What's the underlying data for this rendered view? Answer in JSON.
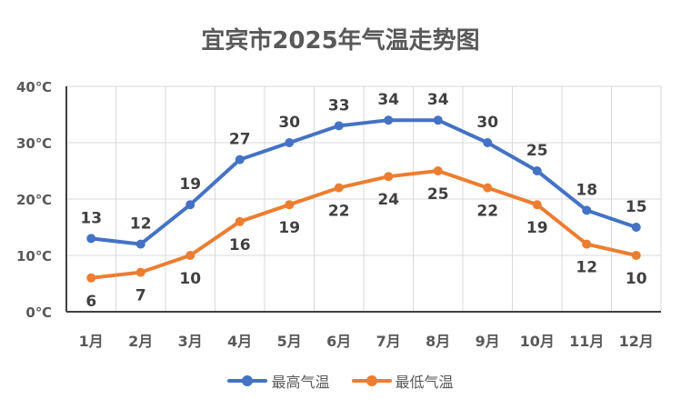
{
  "chart_data": {
    "type": "line",
    "title": "宜宾市2025年气温走势图",
    "categories": [
      "1月",
      "2月",
      "3月",
      "4月",
      "5月",
      "6月",
      "7月",
      "8月",
      "9月",
      "10月",
      "11月",
      "12月"
    ],
    "ylim": [
      0,
      40
    ],
    "yticks": [
      "0℃",
      "10℃",
      "20℃",
      "30℃",
      "40℃"
    ],
    "grid": true,
    "legend_position": "bottom",
    "series": [
      {
        "name": "最高气温",
        "color": "#4472C4",
        "label_position": "above",
        "values": [
          13,
          12,
          19,
          27,
          30,
          33,
          34,
          34,
          30,
          25,
          18,
          15
        ]
      },
      {
        "name": "最低气温",
        "color": "#ED7D31",
        "label_position": "below",
        "values": [
          6,
          7,
          10,
          16,
          19,
          22,
          24,
          25,
          22,
          19,
          12,
          10
        ]
      }
    ]
  }
}
